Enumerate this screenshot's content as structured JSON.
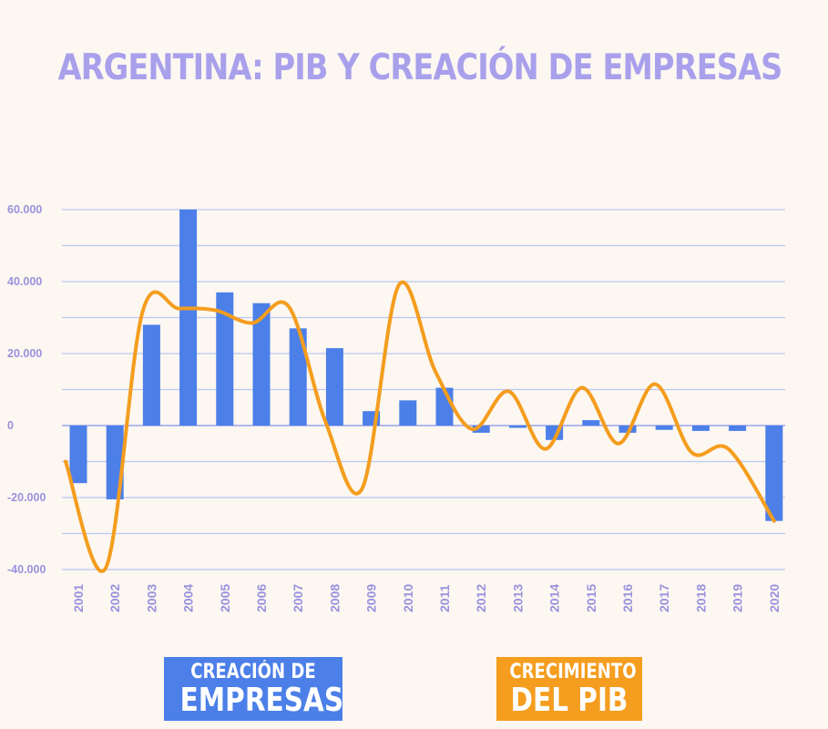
{
  "chart_data": {
    "type": "bar+line",
    "title": "ARGENTINA: PIB Y CREACIÓN DE EMPRESAS",
    "categories": [
      "2001",
      "2002",
      "2003",
      "2004",
      "2005",
      "2006",
      "2007",
      "2008",
      "2009",
      "2010",
      "2011",
      "2012",
      "2013",
      "2014",
      "2015",
      "2016",
      "2017",
      "2018",
      "2019",
      "2020"
    ],
    "y_ticks": [
      "60.000",
      "40.000",
      "20.000",
      "0",
      "-20.000",
      "-40.000"
    ],
    "ylim": [
      -40000,
      60000
    ],
    "series": [
      {
        "name": "CREACIÓN DE EMPRESAS",
        "type": "bar",
        "color": "#4c7fe8",
        "values": [
          -16000,
          -20500,
          28000,
          60000,
          37000,
          34000,
          27000,
          21500,
          4000,
          7000,
          10500,
          -2000,
          0,
          -4000,
          1500,
          -2000,
          -1200,
          -1500,
          -1500,
          -26500
        ]
      },
      {
        "name": "CRECIMIENTO DEL PIB",
        "type": "line",
        "color": "#f49d1e",
        "values": [
          -10000,
          -39500,
          31500,
          32500,
          32000,
          28500,
          33000,
          1000,
          -17500,
          39000,
          15000,
          -1000,
          9500,
          -6500,
          10500,
          -5000,
          11500,
          -7500,
          -6500,
          -26500
        ]
      }
    ]
  },
  "legend": {
    "empresas_line1": "CREACIÓN DE",
    "empresas_line2": "EMPRESAS",
    "pib_line1": "CRECIMIENTO",
    "pib_line2": "DEL PIB"
  }
}
